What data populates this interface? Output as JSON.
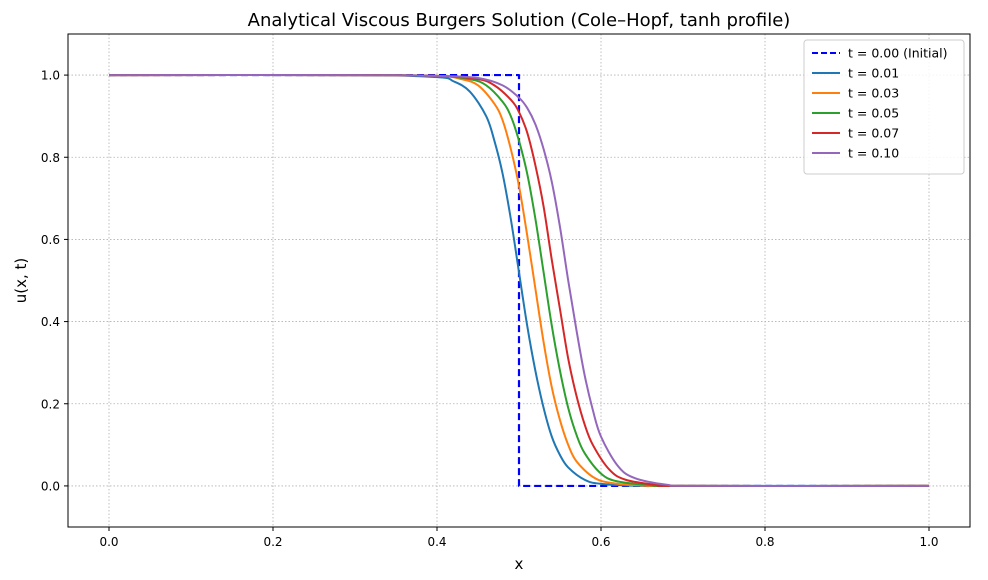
{
  "chart_data": {
    "type": "line",
    "title": "Analytical Viscous Burgers Solution (Cole–Hopf, tanh profile)",
    "xlabel": "x",
    "ylabel": "u(x, t)",
    "xlim": [
      -0.05,
      1.05
    ],
    "ylim": [
      -0.1,
      1.1
    ],
    "xticks": [
      0.0,
      0.2,
      0.4,
      0.6,
      0.8,
      1.0
    ],
    "xtick_labels": [
      "0.0",
      "0.2",
      "0.4",
      "0.6",
      "0.8",
      "1.0"
    ],
    "yticks": [
      0.0,
      0.2,
      0.4,
      0.6,
      0.8,
      1.0
    ],
    "ytick_labels": [
      "0.0",
      "0.2",
      "0.4",
      "0.6",
      "0.8",
      "1.0"
    ],
    "grid": true,
    "legend_position": "top-right",
    "series": [
      {
        "name": "t = 0.00 (Initial)",
        "color": "#0000ff",
        "style": "dashed",
        "x": [
          0.0,
          0.5,
          0.5,
          1.0
        ],
        "y": [
          1.0,
          1.0,
          0.0,
          0.0
        ]
      },
      {
        "name": "t = 0.01",
        "color": "#1f77b4",
        "style": "solid",
        "x": [
          0.0,
          0.3,
          0.4,
          0.42,
          0.44,
          0.46,
          0.47,
          0.48,
          0.49,
          0.5,
          0.51,
          0.52,
          0.53,
          0.54,
          0.55,
          0.56,
          0.58,
          0.6,
          0.65,
          0.7,
          1.0
        ],
        "y": [
          1.0,
          1.0,
          0.995,
          0.985,
          0.96,
          0.9,
          0.84,
          0.76,
          0.65,
          0.52,
          0.39,
          0.28,
          0.19,
          0.12,
          0.075,
          0.045,
          0.015,
          0.005,
          0.0,
          0.0,
          0.0
        ]
      },
      {
        "name": "t = 0.03",
        "color": "#ff7f0e",
        "style": "solid",
        "x": [
          0.0,
          0.3,
          0.4,
          0.43,
          0.45,
          0.47,
          0.48,
          0.49,
          0.5,
          0.51,
          0.52,
          0.53,
          0.54,
          0.55,
          0.56,
          0.57,
          0.59,
          0.61,
          0.65,
          0.7,
          1.0
        ],
        "y": [
          1.0,
          1.0,
          0.998,
          0.99,
          0.975,
          0.93,
          0.89,
          0.82,
          0.73,
          0.61,
          0.48,
          0.35,
          0.24,
          0.16,
          0.1,
          0.06,
          0.022,
          0.008,
          0.001,
          0.0,
          0.0
        ]
      },
      {
        "name": "t = 0.05",
        "color": "#2ca02c",
        "style": "solid",
        "x": [
          0.0,
          0.3,
          0.4,
          0.44,
          0.46,
          0.48,
          0.49,
          0.5,
          0.51,
          0.52,
          0.53,
          0.54,
          0.55,
          0.56,
          0.57,
          0.58,
          0.6,
          0.62,
          0.66,
          0.7,
          1.0
        ],
        "y": [
          1.0,
          1.0,
          0.998,
          0.99,
          0.975,
          0.935,
          0.9,
          0.84,
          0.76,
          0.65,
          0.52,
          0.39,
          0.28,
          0.19,
          0.125,
          0.08,
          0.03,
          0.011,
          0.002,
          0.0,
          0.0
        ]
      },
      {
        "name": "t = 0.07",
        "color": "#d62728",
        "style": "solid",
        "x": [
          0.0,
          0.3,
          0.4,
          0.45,
          0.47,
          0.49,
          0.5,
          0.51,
          0.52,
          0.53,
          0.54,
          0.55,
          0.56,
          0.57,
          0.58,
          0.59,
          0.61,
          0.63,
          0.67,
          0.7,
          1.0
        ],
        "y": [
          1.0,
          1.0,
          0.998,
          0.99,
          0.975,
          0.94,
          0.91,
          0.86,
          0.78,
          0.68,
          0.55,
          0.43,
          0.31,
          0.22,
          0.15,
          0.1,
          0.04,
          0.015,
          0.002,
          0.0,
          0.0
        ]
      },
      {
        "name": "t = 0.10",
        "color": "#9467bd",
        "style": "solid",
        "x": [
          0.0,
          0.3,
          0.4,
          0.45,
          0.48,
          0.5,
          0.51,
          0.52,
          0.53,
          0.54,
          0.55,
          0.56,
          0.57,
          0.58,
          0.59,
          0.6,
          0.62,
          0.64,
          0.68,
          0.72,
          1.0
        ],
        "y": [
          1.0,
          1.0,
          0.998,
          0.993,
          0.975,
          0.945,
          0.92,
          0.88,
          0.82,
          0.74,
          0.63,
          0.5,
          0.38,
          0.27,
          0.185,
          0.12,
          0.05,
          0.02,
          0.003,
          0.0,
          0.0
        ]
      }
    ]
  }
}
